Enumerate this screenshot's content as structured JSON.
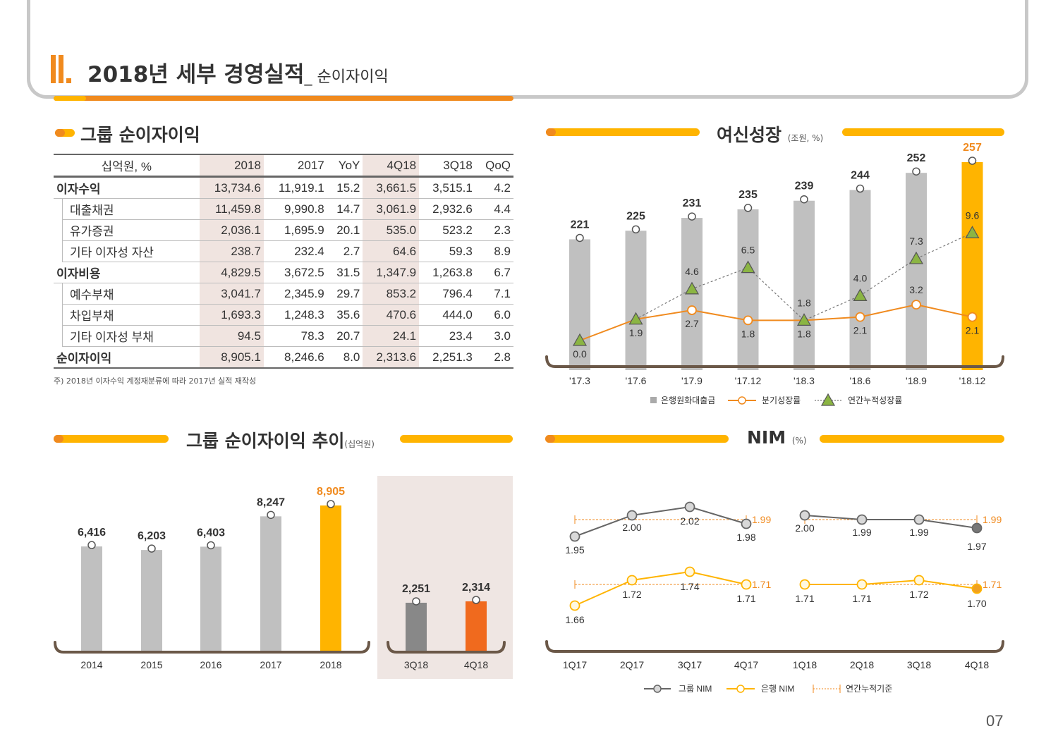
{
  "header": {
    "roman": "II.",
    "title": "2018년 세부 경영실적",
    "subtitle": "_ 순이자이익",
    "colors": {
      "orange": "#f08a1e",
      "yellow": "#ffb400",
      "gray": "#c8c8c8"
    }
  },
  "sections": {
    "table_title": "그룹 순이자이익",
    "trend_title": "그룹 순이자이익 추이",
    "trend_unit": "(십억원)",
    "loan_title": "여신성장",
    "loan_unit": "(조원, %)",
    "nim_title": "NIM",
    "nim_unit": "(%)"
  },
  "table": {
    "headers": [
      "십억원, %",
      "2018",
      "2017",
      "YoY",
      "4Q18",
      "3Q18",
      "QoQ"
    ],
    "rows": [
      {
        "label": "이자수익",
        "main": true,
        "cells": [
          "13,734.6",
          "11,919.1",
          "15.2",
          "3,661.5",
          "3,515.1",
          "4.2"
        ]
      },
      {
        "label": "대출채권",
        "main": false,
        "cells": [
          "11,459.8",
          "9,990.8",
          "14.7",
          "3,061.9",
          "2,932.6",
          "4.4"
        ]
      },
      {
        "label": "유가증권",
        "main": false,
        "cells": [
          "2,036.1",
          "1,695.9",
          "20.1",
          "535.0",
          "523.2",
          "2.3"
        ]
      },
      {
        "label": "기타 이자성 자산",
        "main": false,
        "cells": [
          "238.7",
          "232.4",
          "2.7",
          "64.6",
          "59.3",
          "8.9"
        ]
      },
      {
        "label": "이자비용",
        "main": true,
        "cells": [
          "4,829.5",
          "3,672.5",
          "31.5",
          "1,347.9",
          "1,263.8",
          "6.7"
        ]
      },
      {
        "label": "예수부채",
        "main": false,
        "cells": [
          "3,041.7",
          "2,345.9",
          "29.7",
          "853.2",
          "796.4",
          "7.1"
        ]
      },
      {
        "label": "차입부채",
        "main": false,
        "cells": [
          "1,693.3",
          "1,248.3",
          "35.6",
          "470.6",
          "444.0",
          "6.0"
        ]
      },
      {
        "label": "기타 이자성 부채",
        "main": false,
        "cells": [
          "94.5",
          "78.3",
          "20.7",
          "24.1",
          "23.4",
          "3.0"
        ]
      },
      {
        "label": "순이자이익",
        "main": true,
        "cells": [
          "8,905.1",
          "8,246.6",
          "8.0",
          "2,313.6",
          "2,251.3",
          "2.8"
        ]
      }
    ],
    "note": "주) 2018년 이자수익 계정재분류에 따라 2017년 실적 재작성"
  },
  "page_number": "07",
  "chart_data": [
    {
      "id": "loan",
      "type": "bar",
      "categories": [
        "'17.3",
        "'17.6",
        "'17.9",
        "'17.12",
        "'18.3",
        "'18.6",
        "'18.9",
        "'18.12"
      ],
      "series": [
        {
          "name": "은행원화대출금",
          "type": "bar",
          "values": [
            221,
            225,
            231,
            235,
            239,
            244,
            252,
            257
          ],
          "color": "#c0c0c0",
          "highlight_color": "#ffb400"
        },
        {
          "name": "분기성장률",
          "type": "line",
          "values": [
            0.0,
            1.9,
            2.7,
            1.8,
            1.8,
            2.1,
            3.2,
            2.1
          ],
          "color": "#f08a1e"
        },
        {
          "name": "연간누적성장률",
          "type": "line",
          "values": [
            0.0,
            1.9,
            4.6,
            6.5,
            1.8,
            4.0,
            7.3,
            9.6
          ],
          "color": "#8bb543"
        }
      ],
      "ylim": [
        0,
        260
      ],
      "legend": "bottom"
    },
    {
      "id": "nii_annual",
      "type": "bar",
      "categories": [
        "2014",
        "2015",
        "2016",
        "2017",
        "2018"
      ],
      "values": [
        6416,
        6203,
        6403,
        8247,
        8905
      ],
      "labels": [
        "6,416",
        "6,203",
        "6,403",
        "8,247",
        "8,905"
      ],
      "colors": {
        "bar": "#c0c0c0",
        "highlight": "#ffb400"
      }
    },
    {
      "id": "nii_quarter",
      "type": "bar",
      "categories": [
        "3Q18",
        "4Q18"
      ],
      "values": [
        2251,
        2314
      ],
      "labels": [
        "2,251",
        "2,314"
      ],
      "colors": [
        "#888888",
        "#f06a1e"
      ]
    },
    {
      "id": "nim",
      "type": "line",
      "categories": [
        "1Q17",
        "2Q17",
        "3Q17",
        "4Q17",
        "1Q18",
        "2Q18",
        "3Q18",
        "4Q18"
      ],
      "series": [
        {
          "name": "그룹 NIM",
          "values": [
            1.95,
            2.0,
            2.02,
            1.98,
            2.0,
            1.99,
            1.99,
            1.97
          ],
          "color": "#666666",
          "annual": [
            "1.99",
            "1.99"
          ]
        },
        {
          "name": "은행 NIM",
          "values": [
            1.66,
            1.72,
            1.74,
            1.71,
            1.71,
            1.71,
            1.72,
            1.7
          ],
          "color": "#ffb400",
          "annual": [
            "1.71",
            "1.71"
          ]
        }
      ],
      "annual_legend": "연간누적기준",
      "legend": "bottom"
    }
  ]
}
